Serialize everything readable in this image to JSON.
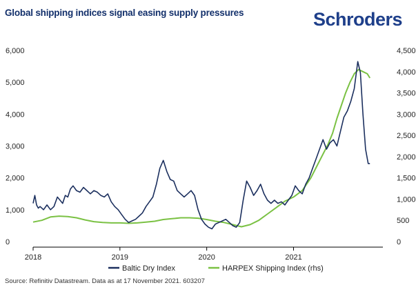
{
  "header": {
    "title": "Global shipping indices signal easing supply pressures",
    "brand": "Schroders"
  },
  "footer": {
    "source": "Source: Refinitiv Datastream. Data as at 17 November 2021. 603207"
  },
  "colors": {
    "bdi": "#1b2f5e",
    "harpex": "#7ac143",
    "title": "#13306b",
    "brand": "#1e3f8a"
  },
  "chart_data": {
    "type": "line",
    "title": "Global shipping indices signal easing supply pressures",
    "x_ticks": [
      "2018",
      "2019",
      "2020",
      "2021"
    ],
    "x_tick_values": [
      2018,
      2019,
      2020,
      2021
    ],
    "xlim": [
      2018,
      2021.95
    ],
    "ylim_left": [
      0,
      6000
    ],
    "ylim_right": [
      0,
      4500
    ],
    "left_ticks": [
      "0",
      "1,000",
      "2,000",
      "3,000",
      "4,000",
      "5,000",
      "6,000"
    ],
    "left_tick_values": [
      0,
      1000,
      2000,
      3000,
      4000,
      5000,
      6000
    ],
    "right_ticks": [
      "0",
      "500",
      "1,000",
      "1,500",
      "2,000",
      "2,500",
      "3,000",
      "3,500",
      "4,000",
      "4,500"
    ],
    "right_tick_values": [
      0,
      500,
      1000,
      1500,
      2000,
      2500,
      3000,
      3500,
      4000,
      4500
    ],
    "legend_position": "bottom",
    "grid": false,
    "series": [
      {
        "name": "Baltic Dry Index",
        "axis": "left",
        "x": [
          2018.0,
          2018.02,
          2018.04,
          2018.06,
          2018.08,
          2018.12,
          2018.16,
          2018.2,
          2018.24,
          2018.28,
          2018.31,
          2018.34,
          2018.37,
          2018.4,
          2018.43,
          2018.46,
          2018.5,
          2018.54,
          2018.58,
          2018.62,
          2018.66,
          2018.7,
          2018.74,
          2018.78,
          2018.82,
          2018.86,
          2018.9,
          2018.94,
          2018.98,
          2019.02,
          2019.06,
          2019.1,
          2019.14,
          2019.18,
          2019.22,
          2019.26,
          2019.3,
          2019.34,
          2019.38,
          2019.42,
          2019.46,
          2019.5,
          2019.54,
          2019.58,
          2019.62,
          2019.66,
          2019.7,
          2019.74,
          2019.78,
          2019.82,
          2019.86,
          2019.9,
          2019.94,
          2019.98,
          2020.02,
          2020.06,
          2020.1,
          2020.14,
          2020.18,
          2020.22,
          2020.26,
          2020.3,
          2020.34,
          2020.38,
          2020.42,
          2020.46,
          2020.5,
          2020.54,
          2020.58,
          2020.62,
          2020.66,
          2020.7,
          2020.74,
          2020.78,
          2020.82,
          2020.86,
          2020.9,
          2020.94,
          2020.98,
          2021.02,
          2021.06,
          2021.1,
          2021.14,
          2021.18,
          2021.22,
          2021.26,
          2021.3,
          2021.34,
          2021.38,
          2021.42,
          2021.46,
          2021.5,
          2021.54,
          2021.58,
          2021.62,
          2021.66,
          2021.7,
          2021.74,
          2021.77,
          2021.8,
          2021.83,
          2021.86,
          2021.88
        ],
        "values": [
          1200,
          1450,
          1150,
          1050,
          1100,
          1000,
          1150,
          1000,
          1100,
          1400,
          1300,
          1200,
          1450,
          1400,
          1650,
          1750,
          1600,
          1550,
          1700,
          1600,
          1500,
          1600,
          1550,
          1450,
          1400,
          1500,
          1250,
          1100,
          1000,
          850,
          700,
          600,
          650,
          700,
          800,
          900,
          1100,
          1250,
          1400,
          1800,
          2300,
          2550,
          2200,
          1950,
          1900,
          1600,
          1500,
          1400,
          1500,
          1600,
          1450,
          1000,
          700,
          550,
          450,
          400,
          550,
          600,
          650,
          700,
          600,
          500,
          450,
          600,
          1300,
          1900,
          1700,
          1450,
          1600,
          1800,
          1500,
          1300,
          1200,
          1300,
          1200,
          1250,
          1150,
          1300,
          1450,
          1750,
          1600,
          1500,
          1800,
          2000,
          2300,
          2600,
          2900,
          3200,
          2900,
          3100,
          3200,
          3000,
          3450,
          3900,
          4100,
          4400,
          4800,
          5650,
          5300,
          4000,
          2900,
          2450,
          2450
        ]
      },
      {
        "name": "HARPEX Shipping Index (rhs)",
        "axis": "right",
        "x": [
          2018.0,
          2018.1,
          2018.2,
          2018.3,
          2018.4,
          2018.5,
          2018.6,
          2018.7,
          2018.8,
          2018.9,
          2019.0,
          2019.1,
          2019.2,
          2019.3,
          2019.4,
          2019.5,
          2019.6,
          2019.7,
          2019.8,
          2019.9,
          2020.0,
          2020.1,
          2020.2,
          2020.3,
          2020.4,
          2020.5,
          2020.6,
          2020.7,
          2020.8,
          2020.9,
          2021.0,
          2021.1,
          2021.2,
          2021.3,
          2021.4,
          2021.45,
          2021.5,
          2021.55,
          2021.6,
          2021.65,
          2021.7,
          2021.75,
          2021.8,
          2021.85,
          2021.88
        ],
        "values": [
          460,
          500,
          580,
          600,
          590,
          560,
          510,
          470,
          450,
          440,
          440,
          430,
          440,
          460,
          480,
          520,
          540,
          560,
          560,
          550,
          520,
          480,
          450,
          400,
          350,
          400,
          500,
          650,
          800,
          950,
          1050,
          1200,
          1500,
          1900,
          2300,
          2550,
          2900,
          3200,
          3500,
          3750,
          3950,
          4050,
          4000,
          3950,
          3850
        ]
      }
    ]
  }
}
